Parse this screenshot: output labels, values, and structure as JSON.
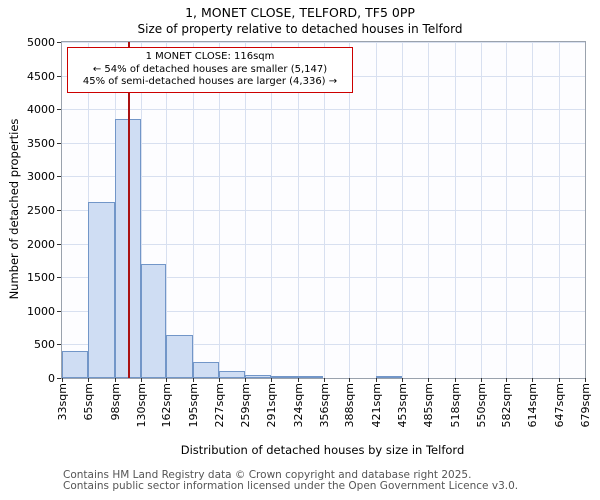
{
  "title": "1, MONET CLOSE, TELFORD, TF5 0PP",
  "subtitle": "Size of property relative to detached houses in Telford",
  "annotation": {
    "line1": "1 MONET CLOSE: 116sqm",
    "line2": "← 54% of detached houses are smaller (5,147)",
    "line3": "45% of semi-detached houses are larger (4,336) →"
  },
  "footer": {
    "line1": "Contains HM Land Registry data © Crown copyright and database right 2025.",
    "line2": "Contains public sector information licensed under the Open Government Licence v3.0."
  },
  "chart_data": {
    "type": "bar",
    "title": "1, MONET CLOSE, TELFORD, TF5 0PP — Size of property relative to detached houses in Telford",
    "xlabel": "Distribution of detached houses by size in Telford",
    "ylabel": "Number of detached properties",
    "bin_edges": [
      33,
      65,
      98,
      130,
      162,
      195,
      227,
      259,
      291,
      324,
      356,
      388,
      421,
      453,
      485,
      518,
      550,
      582,
      614,
      647,
      679
    ],
    "tick_labels": [
      "33sqm",
      "65sqm",
      "98sqm",
      "130sqm",
      "162sqm",
      "195sqm",
      "227sqm",
      "259sqm",
      "291sqm",
      "324sqm",
      "356sqm",
      "388sqm",
      "421sqm",
      "453sqm",
      "485sqm",
      "518sqm",
      "550sqm",
      "582sqm",
      "614sqm",
      "647sqm",
      "679sqm"
    ],
    "values": [
      400,
      2620,
      3850,
      1700,
      640,
      240,
      110,
      50,
      25,
      20,
      0,
      0,
      25,
      0,
      0,
      0,
      0,
      0,
      0,
      0
    ],
    "ylim": [
      0,
      5000
    ],
    "ytick_step": 500,
    "marker_value": 116,
    "legend": "none",
    "grid": true,
    "colors": {
      "bar_fill": "#cfddf3",
      "bar_border": "#7296c8",
      "marker": "#aa1111",
      "grid": "#d8e0f0",
      "annotation_border": "#cc0000"
    }
  }
}
